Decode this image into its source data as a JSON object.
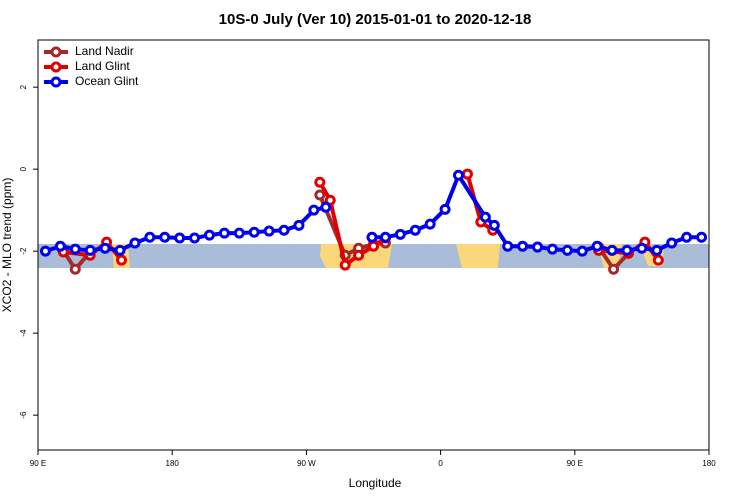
{
  "chart_data": {
    "type": "line",
    "title": "10S-0 July (Ver 10)   2015-01-01 to 2020-12-18",
    "x_label": "Longitude",
    "y_label": "XCO2 - MLO trend (ppm)",
    "xlim": [
      90,
      540
    ],
    "ylim": [
      -6.85,
      3.15
    ],
    "xticks": [
      {
        "value": 90,
        "label": "90 E"
      },
      180,
      {
        "value": 270,
        "label": "90 W"
      },
      {
        "value": 360,
        "label": "0"
      },
      {
        "value": 450,
        "label": "90 E"
      },
      {
        "value": 540,
        "label": "180"
      }
    ],
    "yticks": [
      2,
      0,
      -2,
      -4,
      -6
    ],
    "legend": "top-left",
    "series": [
      {
        "name": "Land Nadir",
        "color": "#a52a2a",
        "x": [
          106,
          115,
          125,
          200,
          279,
          296,
          305,
          315,
          323,
          400,
          466,
          476,
          486
        ],
        "values": [
          -1.93,
          -2.44,
          -2.02,
          null,
          -0.63,
          -2.1,
          -1.93,
          -1.83,
          -1.8,
          null,
          -1.9,
          -2.44,
          -2.05
        ]
      },
      {
        "name": "Land Glint",
        "color": "#e00000",
        "x": [
          107,
          125,
          136,
          146,
          200,
          279,
          286,
          296,
          305,
          315,
          323,
          350,
          378,
          387,
          395,
          430,
          466,
          486,
          497,
          506
        ],
        "values": [
          -2.02,
          -2.1,
          -1.78,
          -2.22,
          null,
          -0.32,
          -0.76,
          -2.34,
          -2.1,
          -1.88,
          -1.68,
          null,
          -0.12,
          -1.29,
          -1.49,
          null,
          -1.98,
          -2.05,
          -1.78,
          -2.22
        ]
      },
      {
        "name": "Ocean Glint",
        "color": "#0000ee",
        "x": [
          95,
          105,
          115,
          125,
          135,
          145,
          155,
          165,
          175,
          185,
          195,
          205,
          215,
          225,
          235,
          245,
          255,
          265,
          275,
          283,
          300,
          314,
          323,
          333,
          343,
          353,
          363,
          372,
          390,
          396,
          405,
          415,
          425,
          435,
          445,
          455,
          465,
          475,
          485,
          495,
          505,
          515,
          525,
          535
        ],
        "values": [
          -2.0,
          -1.88,
          -1.95,
          -1.98,
          -1.93,
          -1.98,
          -1.8,
          -1.66,
          -1.66,
          -1.68,
          -1.68,
          -1.61,
          -1.56,
          -1.56,
          -1.54,
          -1.51,
          -1.49,
          -1.37,
          -1.0,
          -0.93,
          null,
          -1.66,
          -1.66,
          -1.59,
          -1.49,
          -1.34,
          -0.98,
          -0.15,
          -1.17,
          -1.37,
          -1.88,
          -1.88,
          -1.9,
          -1.95,
          -1.98,
          -2.0,
          -1.88,
          -1.98,
          -1.98,
          -1.93,
          -1.98,
          -1.8,
          -1.66,
          -1.66
        ]
      }
    ]
  }
}
